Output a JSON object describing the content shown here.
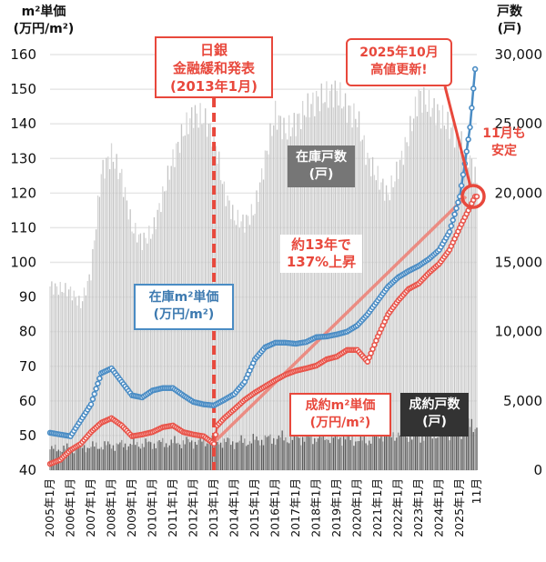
{
  "chart_data": {
    "type": "bar+line",
    "left_axis": {
      "label_line1": "m²単価",
      "label_line2": "(万円/m²)",
      "ylim": [
        40,
        160
      ],
      "ticks": [
        "40",
        "50",
        "60",
        "70",
        "80",
        "90",
        "100",
        "110",
        "120",
        "130",
        "140",
        "150",
        "160"
      ]
    },
    "right_axis": {
      "label_line1": "戸数",
      "label_line2": "(戸)",
      "ylim": [
        0,
        30000
      ],
      "ticks": [
        "0",
        "5,000",
        "10,000",
        "15,000",
        "20,000",
        "25,000",
        "30,000"
      ]
    },
    "x_ticks": [
      "2005年1月",
      "2006年1月",
      "2007年1月",
      "2008年1月",
      "2009年1月",
      "2010年1月",
      "2011年1月",
      "2012年1月",
      "2013年1月",
      "2014年1月",
      "2015年1月",
      "2016年1月",
      "2017年1月",
      "2018年1月",
      "2019年1月",
      "2020年1月",
      "2021年1月",
      "2022年1月",
      "2023年1月",
      "2024年1月",
      "2025年1月",
      "11月"
    ],
    "grid": true,
    "series": [
      {
        "name": "在庫戸数(戸)",
        "type": "bar",
        "axis": "right",
        "color": "#c9c9c9",
        "points": [
          [
            "2005-01",
            13260
          ],
          [
            "2006-01",
            12930
          ],
          [
            "2006-07",
            11950
          ],
          [
            "2007-01",
            14250
          ],
          [
            "2007-07",
            21470
          ],
          [
            "2008-01",
            22780
          ],
          [
            "2008-07",
            21140
          ],
          [
            "2009-01",
            17530
          ],
          [
            "2009-07",
            16540
          ],
          [
            "2010-01",
            17200
          ],
          [
            "2010-07",
            19820
          ],
          [
            "2011-01",
            22450
          ],
          [
            "2011-07",
            24420
          ],
          [
            "2012-01",
            25730
          ],
          [
            "2012-07",
            25400
          ],
          [
            "2013-01",
            24090
          ],
          [
            "2013-07",
            20150
          ],
          [
            "2014-01",
            18180
          ],
          [
            "2014-07",
            17860
          ],
          [
            "2015-01",
            18840
          ],
          [
            "2015-07",
            22450
          ],
          [
            "2016-01",
            25730
          ],
          [
            "2016-07",
            24420
          ],
          [
            "2017-01",
            25080
          ],
          [
            "2017-07",
            26060
          ],
          [
            "2018-01",
            26720
          ],
          [
            "2018-07",
            27050
          ],
          [
            "2019-01",
            27370
          ],
          [
            "2019-07",
            26060
          ],
          [
            "2020-01",
            25400
          ],
          [
            "2020-07",
            22450
          ],
          [
            "2021-01",
            21140
          ],
          [
            "2021-07",
            19820
          ],
          [
            "2022-01",
            21800
          ],
          [
            "2022-07",
            24090
          ],
          [
            "2023-01",
            27050
          ],
          [
            "2023-07",
            26390
          ],
          [
            "2024-01",
            25730
          ],
          [
            "2024-07",
            24750
          ],
          [
            "2025-01",
            23760
          ],
          [
            "2025-07",
            22450
          ],
          [
            "2025-11",
            20810
          ]
        ]
      },
      {
        "name": "成約戸数(戸)",
        "type": "bar",
        "axis": "right",
        "color": "#555555",
        "points": [
          [
            "2005-01",
            1500
          ],
          [
            "2008-01",
            1800
          ],
          [
            "2013-01",
            2100
          ],
          [
            "2014-01",
            2000
          ],
          [
            "2016-01",
            2300
          ],
          [
            "2019-01",
            2400
          ],
          [
            "2020-07",
            2100
          ],
          [
            "2021-01",
            2700
          ],
          [
            "2023-01",
            2500
          ],
          [
            "2025-01",
            2900
          ],
          [
            "2025-11",
            3300
          ]
        ]
      },
      {
        "name": "在庫m²単価(万円/m²)",
        "type": "line",
        "axis": "left",
        "color": "#4a8cc4",
        "points": [
          [
            "2005-01",
            50.8
          ],
          [
            "2006-01",
            49.8
          ],
          [
            "2007-01",
            59
          ],
          [
            "2007-07",
            68
          ],
          [
            "2008-01",
            69.4
          ],
          [
            "2008-07",
            65.5
          ],
          [
            "2009-01",
            61.6
          ],
          [
            "2009-07",
            61
          ],
          [
            "2010-01",
            63
          ],
          [
            "2010-07",
            63.7
          ],
          [
            "2011-01",
            63.7
          ],
          [
            "2011-07",
            61.6
          ],
          [
            "2012-01",
            59.7
          ],
          [
            "2012-07",
            59
          ],
          [
            "2013-01",
            58.7
          ],
          [
            "2013-07",
            60.3
          ],
          [
            "2014-01",
            62
          ],
          [
            "2014-07",
            65.5
          ],
          [
            "2015-01",
            72
          ],
          [
            "2015-07",
            75.5
          ],
          [
            "2016-01",
            76.8
          ],
          [
            "2016-07",
            76.8
          ],
          [
            "2017-01",
            76.5
          ],
          [
            "2017-07",
            77
          ],
          [
            "2018-01",
            78.4
          ],
          [
            "2018-07",
            78.6
          ],
          [
            "2019-01",
            79.2
          ],
          [
            "2019-07",
            80
          ],
          [
            "2020-01",
            81.8
          ],
          [
            "2020-07",
            85
          ],
          [
            "2021-01",
            89
          ],
          [
            "2021-07",
            93
          ],
          [
            "2022-01",
            95.7
          ],
          [
            "2022-07",
            97.5
          ],
          [
            "2023-01",
            99
          ],
          [
            "2023-07",
            101
          ],
          [
            "2024-01",
            103.6
          ],
          [
            "2024-07",
            108.8
          ],
          [
            "2025-01",
            119
          ],
          [
            "2025-04",
            128.5
          ],
          [
            "2025-07",
            139
          ],
          [
            "2025-10",
            155.8
          ]
        ]
      },
      {
        "name": "成約m²単価(万円/m²)",
        "type": "line",
        "axis": "left",
        "color": "#e8544a",
        "points": [
          [
            "2005-01",
            41.8
          ],
          [
            "2005-07",
            43
          ],
          [
            "2006-01",
            45.8
          ],
          [
            "2006-07",
            47.6
          ],
          [
            "2007-01",
            51
          ],
          [
            "2007-07",
            53.7
          ],
          [
            "2008-01",
            55
          ],
          [
            "2008-07",
            52.9
          ],
          [
            "2009-01",
            49.8
          ],
          [
            "2009-07",
            50.3
          ],
          [
            "2010-01",
            51
          ],
          [
            "2010-07",
            52.4
          ],
          [
            "2011-01",
            52.9
          ],
          [
            "2011-07",
            51
          ],
          [
            "2012-01",
            50.3
          ],
          [
            "2012-07",
            49.8
          ],
          [
            "2013-01",
            47.6
          ],
          [
            "2013-03",
            52.9
          ],
          [
            "2013-07",
            55
          ],
          [
            "2014-01",
            57.6
          ],
          [
            "2014-07",
            60.3
          ],
          [
            "2015-01",
            62.4
          ],
          [
            "2015-07",
            64.2
          ],
          [
            "2016-01",
            66
          ],
          [
            "2016-07",
            67.6
          ],
          [
            "2017-01",
            68.7
          ],
          [
            "2017-07",
            69.4
          ],
          [
            "2018-01",
            70.2
          ],
          [
            "2018-07",
            72
          ],
          [
            "2019-01",
            72.8
          ],
          [
            "2019-07",
            74.7
          ],
          [
            "2020-01",
            74.7
          ],
          [
            "2020-07",
            71.3
          ],
          [
            "2021-01",
            78.6
          ],
          [
            "2021-07",
            85
          ],
          [
            "2022-01",
            89
          ],
          [
            "2022-07",
            92.3
          ],
          [
            "2023-01",
            93.9
          ],
          [
            "2023-07",
            97
          ],
          [
            "2024-01",
            99.6
          ],
          [
            "2024-07",
            103.6
          ],
          [
            "2025-01",
            110
          ],
          [
            "2025-07",
            116
          ],
          [
            "2025-10",
            119
          ],
          [
            "2025-11",
            119
          ]
        ]
      }
    ],
    "annotations": {
      "boj": [
        "日銀",
        "金融緩和発表",
        "(2013年1月)"
      ],
      "boj_date": "2013-01",
      "record": [
        "2025年10月",
        "高値更新!"
      ],
      "nov": [
        "11月も",
        "安定"
      ],
      "growth": [
        "約13年で",
        "137%上昇"
      ],
      "inv_count_label": [
        "在庫戸数",
        "(戸)"
      ],
      "inv_price_label": [
        "在庫m²単価",
        "(万円/m²)"
      ],
      "con_price_label": [
        "成約m²単価",
        "(万円/m²)"
      ],
      "con_count_label": [
        "成約戸数",
        "(戸)"
      ]
    },
    "colors": {
      "accent_red": "#e8483c",
      "blue": "#4a8cc4",
      "growth_arrow": "#ee7f74"
    }
  }
}
